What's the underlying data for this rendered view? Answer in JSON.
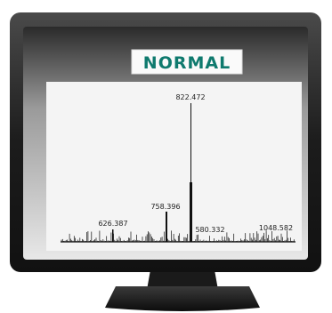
{
  "screen": {
    "title": "NORMAL",
    "peak_labels": [
      "822.472",
      "758.396",
      "626.387",
      "580.332",
      "1048.582"
    ]
  }
}
